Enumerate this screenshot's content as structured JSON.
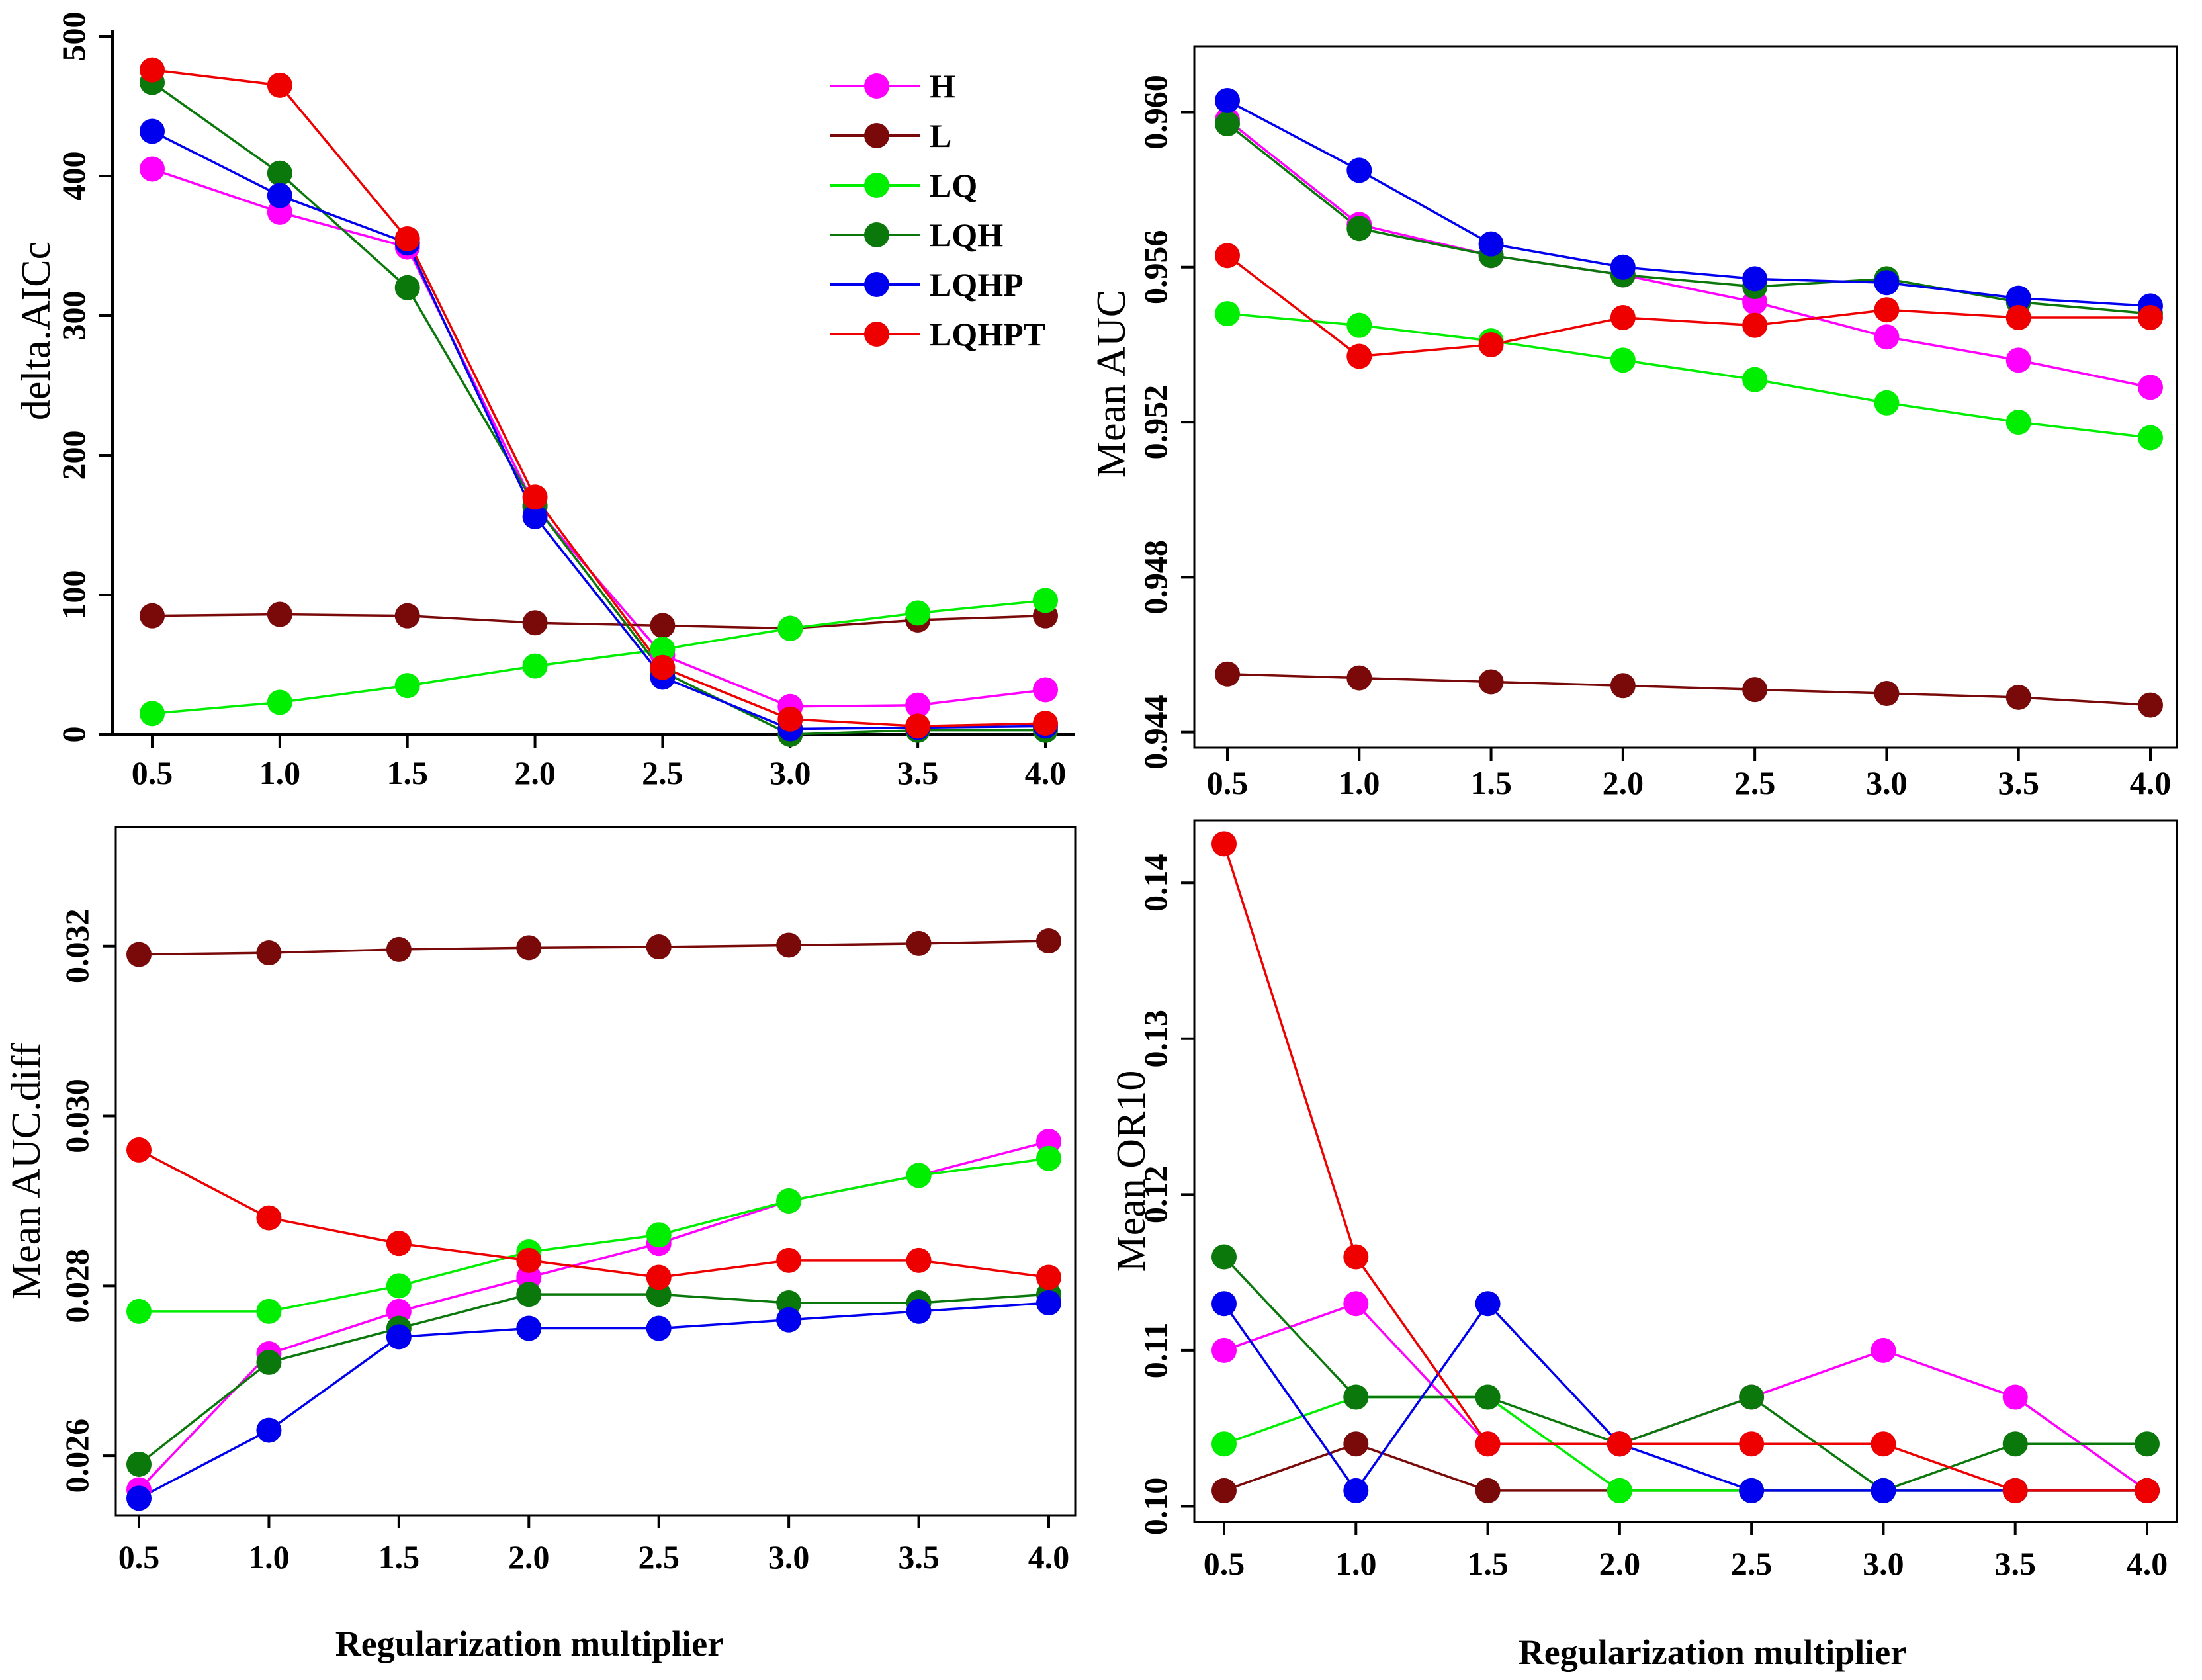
{
  "figure_xlabel": "Regularization multiplier",
  "colors": {
    "H": "#ff00ff",
    "L": "#7a0a0a",
    "LQ": "#00ee00",
    "LQH": "#0a780a",
    "LQHP": "#0000ee",
    "LQHPT": "#ee0000"
  },
  "legend": [
    "H",
    "L",
    "LQ",
    "LQH",
    "LQHP",
    "LQHPT"
  ],
  "chart_data": [
    {
      "id": "aicc",
      "type": "line",
      "title": "",
      "ylabel": "delta.AICc",
      "xlabel": "",
      "x": [
        0.5,
        1.0,
        1.5,
        2.0,
        2.5,
        3.0,
        3.5,
        4.0
      ],
      "xticks": [
        "0.5",
        "1.0",
        "1.5",
        "2.0",
        "2.5",
        "3.0",
        "3.5",
        "4.0"
      ],
      "ylim": [
        0,
        500
      ],
      "yticks": [
        0,
        100,
        200,
        300,
        400,
        500
      ],
      "ytick_labels": [
        "0",
        "100",
        "200",
        "300",
        "400",
        "500"
      ],
      "legend_location": "top-right",
      "series": [
        {
          "name": "H",
          "values": [
            405,
            374,
            349,
            163,
            57,
            20,
            21,
            32
          ]
        },
        {
          "name": "L",
          "values": [
            85,
            86,
            85,
            80,
            78,
            76,
            82,
            85
          ]
        },
        {
          "name": "LQ",
          "values": [
            15,
            23,
            35,
            49,
            61,
            76,
            87,
            96
          ]
        },
        {
          "name": "LQH",
          "values": [
            467,
            402,
            320,
            164,
            45,
            0,
            3,
            3
          ]
        },
        {
          "name": "LQHP",
          "values": [
            432,
            386,
            352,
            156,
            41,
            4,
            5,
            6
          ]
        },
        {
          "name": "LQHPT",
          "values": [
            476,
            465,
            355,
            170,
            48,
            11,
            6,
            8
          ]
        }
      ]
    },
    {
      "id": "auc",
      "type": "line",
      "title": "",
      "ylabel": "Mean AUC",
      "xlabel": "",
      "x": [
        0.5,
        1.0,
        1.5,
        2.0,
        2.5,
        3.0,
        3.5,
        4.0
      ],
      "xticks": [
        "0.5",
        "1.0",
        "1.5",
        "2.0",
        "2.5",
        "3.0",
        "3.5",
        "4.0"
      ],
      "ylim": [
        0.9436,
        0.9617
      ],
      "yticks": [
        0.944,
        0.948,
        0.952,
        0.956,
        0.96
      ],
      "ytick_labels": [
        "0.944",
        "0.948",
        "0.952",
        "0.956",
        "0.960"
      ],
      "series": [
        {
          "name": "H",
          "values": [
            0.9598,
            0.9571,
            0.9563,
            0.9558,
            0.9551,
            0.9542,
            0.9536,
            0.9529
          ]
        },
        {
          "name": "L",
          "values": [
            0.9455,
            0.9454,
            0.9453,
            0.9452,
            0.9451,
            0.945,
            0.9449,
            0.9447
          ]
        },
        {
          "name": "LQ",
          "values": [
            0.9548,
            0.9545,
            0.9541,
            0.9536,
            0.9531,
            0.9525,
            0.952,
            0.9516
          ]
        },
        {
          "name": "LQH",
          "values": [
            0.9597,
            0.957,
            0.9563,
            0.9558,
            0.9555,
            0.9557,
            0.9551,
            0.9548
          ]
        },
        {
          "name": "LQHP",
          "values": [
            0.9603,
            0.9585,
            0.9566,
            0.956,
            0.9557,
            0.9556,
            0.9552,
            0.955
          ]
        },
        {
          "name": "LQHPT",
          "values": [
            0.9563,
            0.9537,
            0.954,
            0.9547,
            0.9545,
            0.9549,
            0.9547,
            0.9547
          ]
        }
      ]
    },
    {
      "id": "aucdiff",
      "type": "line",
      "title": "",
      "ylabel": "Mean AUC.diff",
      "xlabel": "",
      "x": [
        0.5,
        1.0,
        1.5,
        2.0,
        2.5,
        3.0,
        3.5,
        4.0
      ],
      "xticks": [
        "0.5",
        "1.0",
        "1.5",
        "2.0",
        "2.5",
        "3.0",
        "3.5",
        "4.0"
      ],
      "ylim": [
        0.0253,
        0.0334
      ],
      "yticks": [
        0.026,
        0.028,
        0.03,
        0.032
      ],
      "ytick_labels": [
        "0.026",
        "0.028",
        "0.030",
        "0.032"
      ],
      "series": [
        {
          "name": "H",
          "values": [
            0.0256,
            0.0272,
            0.0277,
            0.0281,
            0.0285,
            0.029,
            0.0293,
            0.0297
          ]
        },
        {
          "name": "L",
          "values": [
            0.0319,
            0.03192,
            0.03196,
            0.03198,
            0.03199,
            0.03201,
            0.03203,
            0.03206
          ]
        },
        {
          "name": "LQ",
          "values": [
            0.0277,
            0.0277,
            0.028,
            0.0284,
            0.0286,
            0.029,
            0.0293,
            0.0295
          ]
        },
        {
          "name": "LQH",
          "values": [
            0.0259,
            0.0271,
            0.0275,
            0.0279,
            0.0279,
            0.0278,
            0.0278,
            0.0279
          ]
        },
        {
          "name": "LQHP",
          "values": [
            0.0255,
            0.0263,
            0.0274,
            0.0275,
            0.0275,
            0.0276,
            0.0277,
            0.0278
          ]
        },
        {
          "name": "LQHPT",
          "values": [
            0.0296,
            0.0288,
            0.0285,
            0.0283,
            0.0281,
            0.0283,
            0.0283,
            0.0281
          ]
        }
      ]
    },
    {
      "id": "or10",
      "type": "line",
      "title": "",
      "ylabel": "Mean OR10",
      "xlabel": "",
      "x": [
        0.5,
        1.0,
        1.5,
        2.0,
        2.5,
        3.0,
        3.5,
        4.0
      ],
      "xticks": [
        "0.5",
        "1.0",
        "1.5",
        "2.0",
        "2.5",
        "3.0",
        "3.5",
        "4.0"
      ],
      "ylim": [
        0.099,
        0.144
      ],
      "yticks": [
        0.1,
        0.11,
        0.12,
        0.13,
        0.14
      ],
      "ytick_labels": [
        "0.10",
        "0.11",
        "0.12",
        "0.13",
        "0.14"
      ],
      "series": [
        {
          "name": "H",
          "values": [
            0.11,
            0.113,
            0.104,
            0.104,
            0.107,
            0.11,
            0.107,
            0.101
          ]
        },
        {
          "name": "L",
          "values": [
            0.101,
            0.104,
            0.101,
            0.101,
            0.101,
            0.101,
            0.101,
            0.101
          ]
        },
        {
          "name": "LQ",
          "values": [
            0.104,
            0.107,
            0.107,
            0.101,
            0.101,
            0.101,
            0.101,
            0.101
          ]
        },
        {
          "name": "LQH",
          "values": [
            0.116,
            0.107,
            0.107,
            0.104,
            0.107,
            0.101,
            0.104,
            0.104
          ]
        },
        {
          "name": "LQHP",
          "values": [
            0.113,
            0.101,
            0.113,
            0.104,
            0.101,
            0.101,
            0.101,
            0.101
          ]
        },
        {
          "name": "LQHPT",
          "values": [
            0.1425,
            0.116,
            0.104,
            0.104,
            0.104,
            0.104,
            0.101,
            0.101
          ]
        }
      ]
    }
  ]
}
